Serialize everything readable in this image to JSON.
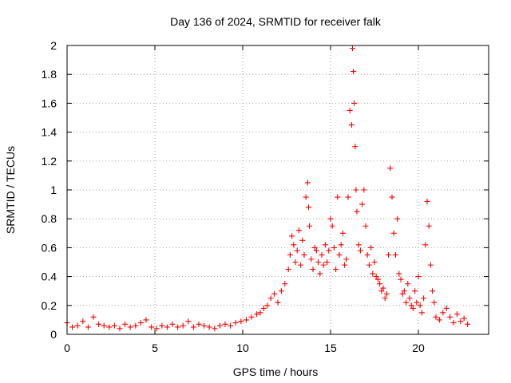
{
  "chart_data": {
    "type": "scatter",
    "title": "Day 136 of 2024, SRMTID for receiver falk",
    "xlabel": "GPS time / hours",
    "ylabel": "SRMTID / TECUs",
    "xlim": [
      0,
      24
    ],
    "ylim": [
      0,
      2
    ],
    "xticks": [
      0,
      5,
      10,
      15,
      20
    ],
    "xtick_labels": [
      "0",
      "5",
      "10",
      "15",
      "20"
    ],
    "yticks": [
      0,
      0.2,
      0.4,
      0.6,
      0.8,
      1,
      1.2,
      1.4,
      1.6,
      1.8,
      2
    ],
    "ytick_labels": [
      "0",
      "0.2",
      "0.4",
      "0.6",
      "0.8",
      "1",
      "1.2",
      "1.4",
      "1.6",
      "1.8",
      "2"
    ],
    "grid": true,
    "marker": "+",
    "color": "#ff0000",
    "series": [
      {
        "name": "SRMTID",
        "x": [
          0.0,
          0.3,
          0.6,
          0.9,
          1.2,
          1.5,
          1.8,
          2.1,
          2.4,
          2.7,
          3.0,
          3.3,
          3.6,
          3.9,
          4.2,
          4.5,
          4.8,
          5.1,
          5.4,
          5.7,
          6.0,
          6.3,
          6.6,
          6.9,
          7.2,
          7.5,
          7.8,
          8.1,
          8.4,
          8.7,
          9.0,
          9.3,
          9.6,
          9.9,
          10.2,
          10.5,
          10.8,
          11.0,
          11.2,
          11.4,
          11.6,
          11.8,
          12.0,
          12.2,
          12.4,
          12.6,
          12.7,
          12.8,
          12.9,
          13.0,
          13.1,
          13.2,
          13.3,
          13.4,
          13.5,
          13.6,
          13.7,
          13.75,
          13.8,
          13.9,
          14.0,
          14.1,
          14.2,
          14.3,
          14.4,
          14.5,
          14.6,
          14.7,
          14.8,
          14.9,
          15.0,
          15.1,
          15.2,
          15.3,
          15.4,
          15.5,
          15.6,
          15.7,
          15.8,
          15.9,
          16.0,
          16.1,
          16.2,
          16.25,
          16.3,
          16.35,
          16.4,
          16.45,
          16.5,
          16.6,
          16.7,
          16.8,
          16.9,
          17.0,
          17.1,
          17.2,
          17.3,
          17.4,
          17.5,
          17.6,
          17.7,
          17.8,
          17.9,
          18.0,
          18.1,
          18.2,
          18.3,
          18.4,
          18.5,
          18.6,
          18.7,
          18.8,
          18.9,
          19.0,
          19.1,
          19.2,
          19.3,
          19.4,
          19.5,
          19.6,
          19.7,
          19.8,
          19.9,
          20.0,
          20.1,
          20.2,
          20.3,
          20.4,
          20.5,
          20.6,
          20.7,
          20.8,
          20.9,
          21.0,
          21.2,
          21.4,
          21.6,
          21.8,
          22.0,
          22.2,
          22.4,
          22.6,
          22.8
        ],
        "y": [
          0.08,
          0.05,
          0.06,
          0.09,
          0.05,
          0.12,
          0.07,
          0.06,
          0.05,
          0.06,
          0.04,
          0.07,
          0.05,
          0.06,
          0.08,
          0.1,
          0.05,
          0.04,
          0.06,
          0.05,
          0.07,
          0.05,
          0.06,
          0.09,
          0.05,
          0.07,
          0.06,
          0.05,
          0.04,
          0.06,
          0.07,
          0.06,
          0.08,
          0.09,
          0.1,
          0.12,
          0.14,
          0.15,
          0.18,
          0.2,
          0.25,
          0.28,
          0.22,
          0.3,
          0.35,
          0.45,
          0.55,
          0.68,
          0.62,
          0.5,
          0.58,
          0.72,
          0.48,
          0.65,
          0.55,
          0.95,
          1.05,
          0.88,
          0.75,
          0.52,
          0.45,
          0.6,
          0.58,
          0.5,
          0.42,
          0.55,
          0.48,
          0.62,
          0.5,
          0.58,
          0.8,
          0.75,
          0.6,
          0.45,
          0.95,
          0.55,
          0.62,
          0.7,
          0.48,
          0.52,
          0.95,
          1.55,
          1.45,
          1.98,
          1.82,
          1.6,
          1.3,
          1.0,
          0.85,
          0.62,
          0.58,
          0.9,
          1.0,
          0.75,
          0.55,
          0.48,
          0.6,
          0.42,
          0.5,
          0.4,
          0.38,
          0.35,
          0.3,
          0.32,
          0.25,
          0.28,
          0.55,
          1.15,
          0.95,
          0.7,
          0.55,
          0.8,
          0.42,
          0.38,
          0.28,
          0.3,
          0.22,
          0.35,
          0.25,
          0.2,
          0.18,
          0.3,
          0.22,
          0.4,
          0.2,
          0.15,
          0.25,
          0.62,
          0.92,
          0.75,
          0.48,
          0.3,
          0.22,
          0.12,
          0.1,
          0.15,
          0.18,
          0.12,
          0.08,
          0.14,
          0.09,
          0.11,
          0.07
        ]
      }
    ]
  }
}
